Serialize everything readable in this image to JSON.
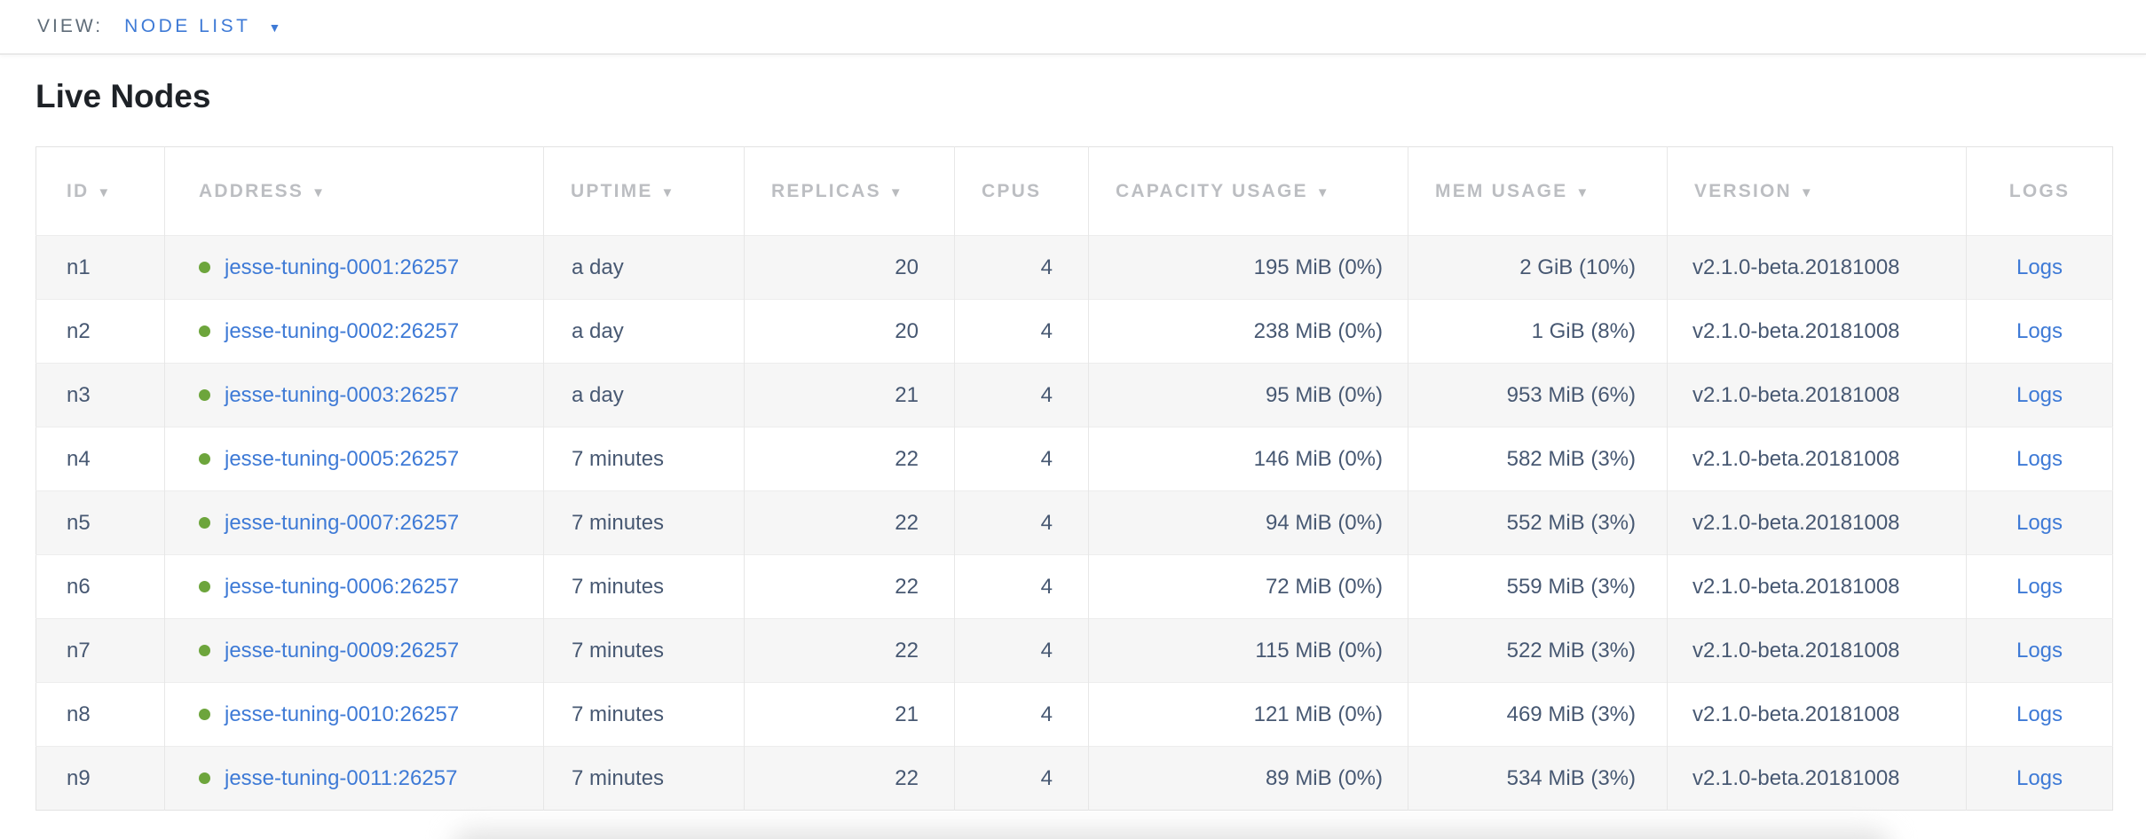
{
  "view_bar": {
    "label": "VIEW:",
    "selected": "NODE LIST"
  },
  "page": {
    "title": "Live Nodes"
  },
  "icons": {
    "sort_arrow": "▼",
    "dropdown_arrow": "▼",
    "live_status_dot": "green-dot"
  },
  "colors": {
    "link_blue": "#3e7ad6",
    "live_green": "#6da53c",
    "header_gray": "#bcbec2",
    "cell_text": "#475872",
    "row_alt_bg": "#f6f6f6"
  },
  "table": {
    "columns": [
      {
        "key": "id",
        "label": "ID",
        "sortable": true
      },
      {
        "key": "address",
        "label": "ADDRESS",
        "sortable": true
      },
      {
        "key": "uptime",
        "label": "UPTIME",
        "sortable": true
      },
      {
        "key": "replicas",
        "label": "REPLICAS",
        "sortable": true
      },
      {
        "key": "cpus",
        "label": "CPUS",
        "sortable": false
      },
      {
        "key": "capacity",
        "label": "CAPACITY USAGE",
        "sortable": true
      },
      {
        "key": "mem",
        "label": "MEM USAGE",
        "sortable": true
      },
      {
        "key": "version",
        "label": "VERSION",
        "sortable": true
      },
      {
        "key": "logs",
        "label": "LOGS",
        "sortable": false
      }
    ],
    "rows": [
      {
        "id": "n1",
        "address": "jesse-tuning-0001:26257",
        "uptime": "a day",
        "replicas": "20",
        "cpus": "4",
        "capacity": "195 MiB (0%)",
        "mem": "2 GiB (10%)",
        "version": "v2.1.0-beta.20181008",
        "logs": "Logs"
      },
      {
        "id": "n2",
        "address": "jesse-tuning-0002:26257",
        "uptime": "a day",
        "replicas": "20",
        "cpus": "4",
        "capacity": "238 MiB (0%)",
        "mem": "1 GiB (8%)",
        "version": "v2.1.0-beta.20181008",
        "logs": "Logs"
      },
      {
        "id": "n3",
        "address": "jesse-tuning-0003:26257",
        "uptime": "a day",
        "replicas": "21",
        "cpus": "4",
        "capacity": "95 MiB (0%)",
        "mem": "953 MiB (6%)",
        "version": "v2.1.0-beta.20181008",
        "logs": "Logs"
      },
      {
        "id": "n4",
        "address": "jesse-tuning-0005:26257",
        "uptime": "7 minutes",
        "replicas": "22",
        "cpus": "4",
        "capacity": "146 MiB (0%)",
        "mem": "582 MiB (3%)",
        "version": "v2.1.0-beta.20181008",
        "logs": "Logs"
      },
      {
        "id": "n5",
        "address": "jesse-tuning-0007:26257",
        "uptime": "7 minutes",
        "replicas": "22",
        "cpus": "4",
        "capacity": "94 MiB (0%)",
        "mem": "552 MiB (3%)",
        "version": "v2.1.0-beta.20181008",
        "logs": "Logs"
      },
      {
        "id": "n6",
        "address": "jesse-tuning-0006:26257",
        "uptime": "7 minutes",
        "replicas": "22",
        "cpus": "4",
        "capacity": "72 MiB (0%)",
        "mem": "559 MiB (3%)",
        "version": "v2.1.0-beta.20181008",
        "logs": "Logs"
      },
      {
        "id": "n7",
        "address": "jesse-tuning-0009:26257",
        "uptime": "7 minutes",
        "replicas": "22",
        "cpus": "4",
        "capacity": "115 MiB (0%)",
        "mem": "522 MiB (3%)",
        "version": "v2.1.0-beta.20181008",
        "logs": "Logs"
      },
      {
        "id": "n8",
        "address": "jesse-tuning-0010:26257",
        "uptime": "7 minutes",
        "replicas": "21",
        "cpus": "4",
        "capacity": "121 MiB (0%)",
        "mem": "469 MiB (3%)",
        "version": "v2.1.0-beta.20181008",
        "logs": "Logs"
      },
      {
        "id": "n9",
        "address": "jesse-tuning-0011:26257",
        "uptime": "7 minutes",
        "replicas": "22",
        "cpus": "4",
        "capacity": "89 MiB (0%)",
        "mem": "534 MiB (3%)",
        "version": "v2.1.0-beta.20181008",
        "logs": "Logs"
      }
    ]
  }
}
